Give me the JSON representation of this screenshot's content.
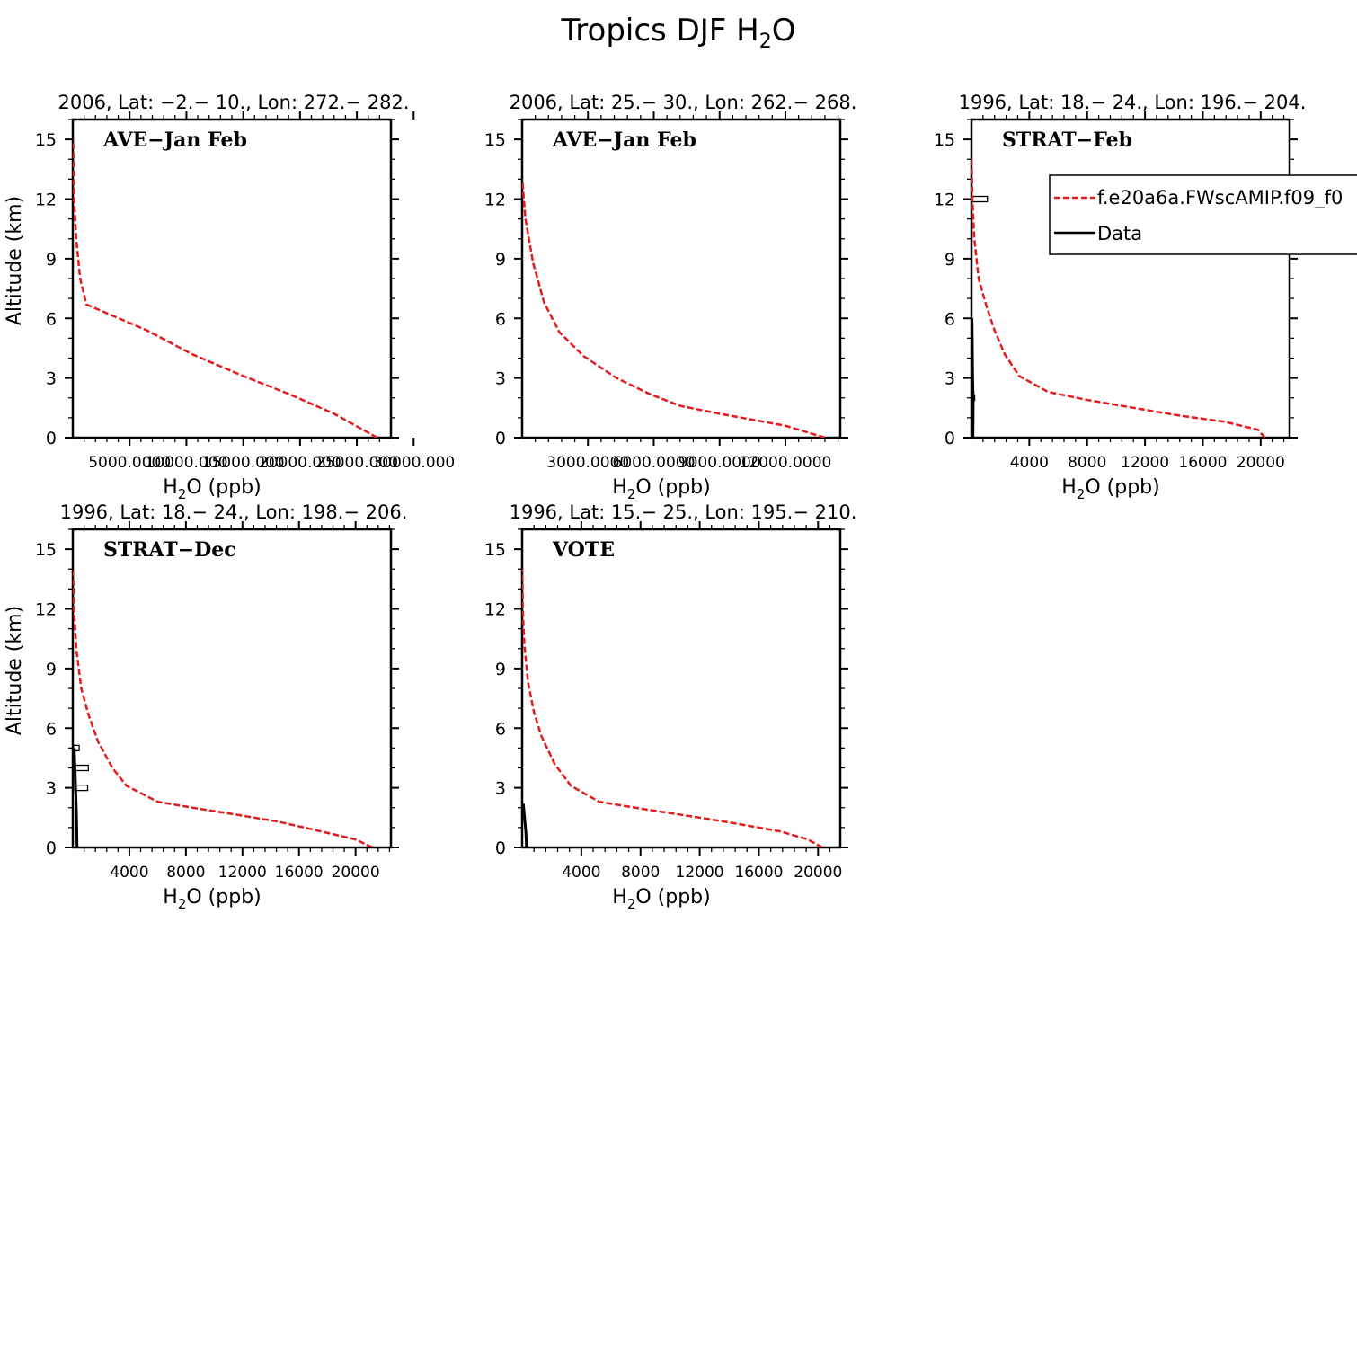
{
  "figure": {
    "title_main": "Tropics DJF H",
    "title_sub": "2",
    "title_end": "O",
    "model_color": "#e41a1c",
    "data_color": "#000000"
  },
  "legend": {
    "model_label": "f.e20a6a.FWscAMIP.f09_f0",
    "data_label": "Data"
  },
  "chart_data": [
    {
      "type": "line",
      "header": "2006, Lat: −2.− 10., Lon: 272.− 282.",
      "campaign": "AVE−Jan Feb",
      "ylabel": "Altitude (km)",
      "xlabel_pre": "H",
      "xlabel_sub": "2",
      "xlabel_post": "O (ppb)",
      "xlim": [
        0,
        28000
      ],
      "ylim": [
        0,
        16
      ],
      "xticks": [
        5000,
        10000,
        15000,
        20000,
        25000,
        30000
      ],
      "xtick_labels": [
        "5000.0000",
        "10000.000",
        "15000.000",
        "20000.000",
        "25000.000",
        "30000.000"
      ],
      "yticks": [
        0,
        3,
        6,
        9,
        12,
        15
      ],
      "ytick_labels": [
        "0",
        "3",
        "6",
        "9",
        "12",
        "15"
      ],
      "series": [
        {
          "name": "f.e20a6a.FWscAMIP.f09_f0",
          "style": "dashed",
          "x": [
            26800,
            23000,
            19000,
            15000,
            10500,
            6500,
            1200,
            650,
            300,
            120,
            30
          ],
          "y": [
            0,
            1.2,
            2.2,
            3.1,
            4.2,
            5.4,
            6.7,
            8.0,
            10.0,
            12.0,
            15.0
          ]
        }
      ],
      "data_profile": [],
      "data_boxes": []
    },
    {
      "type": "line",
      "header": "2006, Lat: 25.− 30., Lon: 262.− 268.",
      "campaign": "AVE−Jan Feb",
      "ylabel": "",
      "xlabel_pre": "H",
      "xlabel_sub": "2",
      "xlabel_post": "O (ppb)",
      "xlim": [
        0,
        14500
      ],
      "ylim": [
        0,
        16
      ],
      "xticks": [
        3000,
        6000,
        9000,
        12000
      ],
      "xtick_labels": [
        "3000.0000",
        "6000.0000",
        "9000.0000",
        "12000.0000"
      ],
      "yticks": [
        0,
        3,
        6,
        9,
        12,
        15
      ],
      "ytick_labels": [
        "0",
        "3",
        "6",
        "9",
        "12",
        "15"
      ],
      "series": [
        {
          "name": "f.e20a6a.FWscAMIP.f09_f0",
          "style": "dashed",
          "x": [
            13800,
            12000,
            9000,
            7200,
            5800,
            4300,
            2800,
            1700,
            1000,
            500,
            150,
            10
          ],
          "y": [
            0,
            0.6,
            1.2,
            1.6,
            2.2,
            3.0,
            4.1,
            5.3,
            6.8,
            8.8,
            11.0,
            13.0
          ]
        }
      ],
      "data_profile": [],
      "data_boxes": []
    },
    {
      "type": "line",
      "header": "1996, Lat: 18.− 24., Lon: 196.− 204.",
      "campaign": "STRAT−Feb",
      "ylabel": "",
      "xlabel_pre": "H",
      "xlabel_sub": "2",
      "xlabel_post": "O (ppb)",
      "xlim": [
        0,
        22000
      ],
      "ylim": [
        0,
        16
      ],
      "xticks": [
        4000,
        8000,
        12000,
        16000,
        20000
      ],
      "xtick_labels": [
        "4000",
        "8000",
        "12000",
        "16000",
        "20000"
      ],
      "yticks": [
        0,
        3,
        6,
        9,
        12,
        15
      ],
      "ytick_labels": [
        "0",
        "3",
        "6",
        "9",
        "12",
        "15"
      ],
      "series": [
        {
          "name": "f.e20a6a.FWscAMIP.f09_f0",
          "style": "dashed",
          "x": [
            20300,
            19800,
            17500,
            14500,
            12000,
            8000,
            5300,
            3300,
            2300,
            1600,
            1000,
            500,
            200,
            60,
            10
          ],
          "y": [
            0,
            0.4,
            0.8,
            1.1,
            1.4,
            1.9,
            2.3,
            3.1,
            4.2,
            5.4,
            6.7,
            8.0,
            10.0,
            12.0,
            14.0
          ]
        }
      ],
      "data_profile": [
        {
          "x": [
            100,
            110,
            120,
            80,
            70,
            40
          ],
          "y": [
            0,
            1,
            2,
            3,
            4,
            6
          ]
        }
      ],
      "data_boxes": [
        {
          "y": 12.0,
          "x0": 40,
          "x1": 1100
        },
        {
          "y": 2.0,
          "x0": 80,
          "x1": 220
        }
      ],
      "show_legend": true
    },
    {
      "type": "line",
      "header": "1996, Lat: 18.− 24., Lon: 198.− 206.",
      "campaign": "STRAT−Dec",
      "ylabel": "Altitude (km)",
      "xlabel_pre": "H",
      "xlabel_sub": "2",
      "xlabel_post": "O (ppb)",
      "xlim": [
        0,
        22500
      ],
      "ylim": [
        0,
        16
      ],
      "xticks": [
        4000,
        8000,
        12000,
        16000,
        20000
      ],
      "xtick_labels": [
        "4000",
        "8000",
        "12000",
        "16000",
        "20000"
      ],
      "yticks": [
        0,
        3,
        6,
        9,
        12,
        15
      ],
      "ytick_labels": [
        "0",
        "3",
        "6",
        "9",
        "12",
        "15"
      ],
      "series": [
        {
          "name": "f.e20a6a.FWscAMIP.f09_f0",
          "style": "dashed",
          "x": [
            21200,
            20000,
            17000,
            14500,
            12000,
            8500,
            6000,
            3800,
            2800,
            1800,
            1100,
            600,
            250,
            80,
            15
          ],
          "y": [
            0,
            0.4,
            0.9,
            1.3,
            1.6,
            2.0,
            2.3,
            3.1,
            4.0,
            5.3,
            6.7,
            8.0,
            10.0,
            12.0,
            14.0
          ]
        }
      ],
      "data_profile": [
        {
          "x": [
            300,
            280,
            250,
            200,
            150,
            100
          ],
          "y": [
            0,
            1,
            2,
            3,
            4,
            5
          ]
        }
      ],
      "data_boxes": [
        {
          "y": 5.0,
          "x0": 50,
          "x1": 450
        },
        {
          "y": 4.0,
          "x0": 100,
          "x1": 1100
        },
        {
          "y": 3.0,
          "x0": 150,
          "x1": 1050
        }
      ]
    },
    {
      "type": "line",
      "header": "1996, Lat: 15.− 25., Lon: 195.− 210.",
      "campaign": "VOTE",
      "ylabel": "",
      "xlabel_pre": "H",
      "xlabel_sub": "2",
      "xlabel_post": "O (ppb)",
      "xlim": [
        0,
        21500
      ],
      "ylim": [
        0,
        16
      ],
      "xticks": [
        4000,
        8000,
        12000,
        16000,
        20000
      ],
      "xtick_labels": [
        "4000",
        "8000",
        "12000",
        "16000",
        "20000"
      ],
      "yticks": [
        0,
        3,
        6,
        9,
        12,
        15
      ],
      "ytick_labels": [
        "0",
        "3",
        "6",
        "9",
        "12",
        "15"
      ],
      "series": [
        {
          "name": "f.e20a6a.FWscAMIP.f09_f0",
          "style": "dashed",
          "x": [
            20300,
            19300,
            17500,
            14500,
            12000,
            8500,
            5200,
            3300,
            2200,
            1300,
            800,
            400,
            150,
            40,
            10
          ],
          "y": [
            0,
            0.4,
            0.8,
            1.2,
            1.5,
            1.9,
            2.3,
            3.1,
            4.2,
            5.6,
            6.8,
            8.3,
            10.2,
            12.0,
            14.0
          ]
        }
      ],
      "data_profile": [
        {
          "x": [
            300,
            250,
            150,
            80
          ],
          "y": [
            0,
            0.8,
            1.6,
            2.2
          ]
        }
      ],
      "data_boxes": []
    }
  ]
}
